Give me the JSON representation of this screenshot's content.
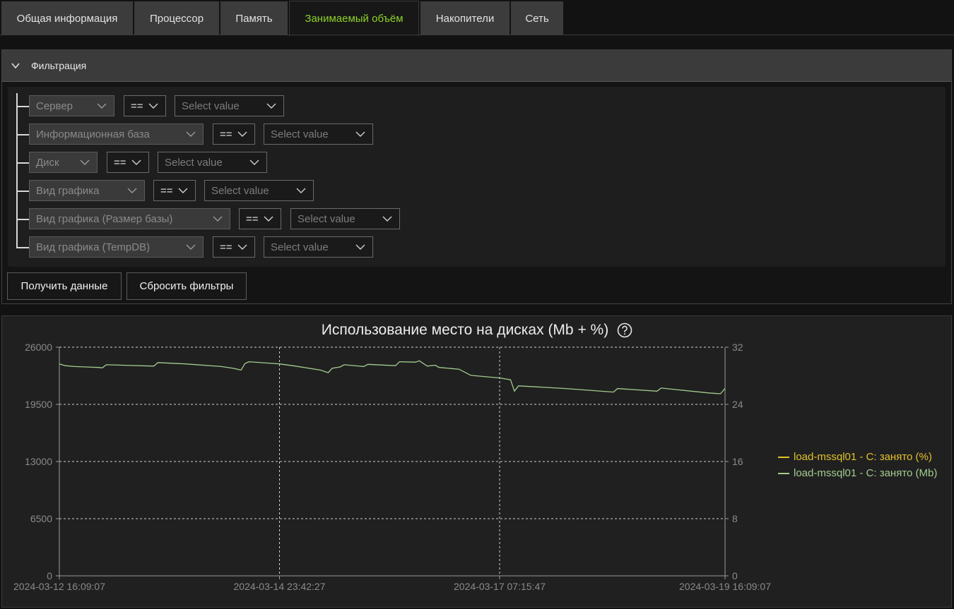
{
  "tabs": [
    {
      "label": "Общая информация"
    },
    {
      "label": "Процессор"
    },
    {
      "label": "Память"
    },
    {
      "label": "Занимаемый объём"
    },
    {
      "label": "Накопители"
    },
    {
      "label": "Сеть"
    }
  ],
  "active_tab": "Занимаемый объём",
  "filter_panel": {
    "title": "Фильтрация",
    "rows": [
      {
        "field": "Сервер",
        "operator": "==",
        "value_placeholder": "Select value"
      },
      {
        "field": "Информационная база",
        "operator": "==",
        "value_placeholder": "Select value"
      },
      {
        "field": "Диск",
        "operator": "==",
        "value_placeholder": "Select value"
      },
      {
        "field": "Вид графика",
        "operator": "==",
        "value_placeholder": "Select value"
      },
      {
        "field": "Вид графика (Размер базы)",
        "operator": "==",
        "value_placeholder": "Select value"
      },
      {
        "field": "Вид графика (TempDB)",
        "operator": "==",
        "value_placeholder": "Select value"
      }
    ],
    "get_data_label": "Получить данные",
    "reset_label": "Сбросить фильтры"
  },
  "colors": {
    "accent": "#8ed22b",
    "series_percent": "#e3c22a",
    "series_mb": "#a3cc8e"
  },
  "chart_data": {
    "type": "line",
    "title": "Использование место на дисках (Mb + %)",
    "x_ticks": [
      "2024-03-12 16:09:07",
      "2024-03-14 23:42:27",
      "2024-03-17 07:15:47",
      "2024-03-19 16:09:07"
    ],
    "x_range": [
      "2024-03-12 16:09:07",
      "2024-03-19 16:09:07"
    ],
    "y_left": {
      "ticks": [
        "0",
        "6500",
        "13000",
        "19500",
        "26000"
      ],
      "range": [
        0,
        26000
      ]
    },
    "y_right": {
      "ticks": [
        "0",
        "8",
        "16",
        "24",
        "32"
      ],
      "range": [
        0,
        32
      ]
    },
    "grid": true,
    "legend_position": "right",
    "series": [
      {
        "name": "load-mssql01 - C: занято (%)",
        "axis": "right",
        "color": "#e3c22a",
        "points": []
      },
      {
        "name": "load-mssql01 - C: занято (Mb)",
        "axis": "left",
        "color": "#a3cc8e",
        "points": [
          [
            "2024-03-12 16:09:07",
            24100
          ],
          [
            "2024-03-12 17:40:00",
            23900
          ],
          [
            "2024-03-12 20:00:00",
            23800
          ],
          [
            "2024-03-13 02:00:00",
            23700
          ],
          [
            "2024-03-13 03:00:00",
            23650
          ],
          [
            "2024-03-13 04:00:00",
            24000
          ],
          [
            "2024-03-13 08:00:00",
            23950
          ],
          [
            "2024-03-13 16:00:00",
            23850
          ],
          [
            "2024-03-13 17:00:00",
            24250
          ],
          [
            "2024-03-14 00:00:00",
            24100
          ],
          [
            "2024-03-14 09:00:00",
            23800
          ],
          [
            "2024-03-14 12:00:00",
            23600
          ],
          [
            "2024-03-14 14:00:00",
            23400
          ],
          [
            "2024-03-14 15:00:00",
            24150
          ],
          [
            "2024-03-14 16:00:00",
            24350
          ],
          [
            "2024-03-14 23:42:27",
            24100
          ],
          [
            "2024-03-15 03:00:00",
            23900
          ],
          [
            "2024-03-15 10:00:00",
            23400
          ],
          [
            "2024-03-15 12:00:00",
            23100
          ],
          [
            "2024-03-15 13:00:00",
            23600
          ],
          [
            "2024-03-15 15:00:00",
            23750
          ],
          [
            "2024-03-15 16:00:00",
            24000
          ],
          [
            "2024-03-15 21:00:00",
            23800
          ],
          [
            "2024-03-15 22:00:00",
            24050
          ],
          [
            "2024-03-16 05:00:00",
            23900
          ],
          [
            "2024-03-16 06:00:00",
            24350
          ],
          [
            "2024-03-16 10:00:00",
            24300
          ],
          [
            "2024-03-16 11:00:00",
            24450
          ],
          [
            "2024-03-16 13:00:00",
            23850
          ],
          [
            "2024-03-16 15:00:00",
            23950
          ],
          [
            "2024-03-16 16:00:00",
            23700
          ],
          [
            "2024-03-16 21:00:00",
            23500
          ],
          [
            "2024-03-17 00:00:00",
            22800
          ],
          [
            "2024-03-17 07:15:47",
            22500
          ],
          [
            "2024-03-17 10:00:00",
            22300
          ],
          [
            "2024-03-17 11:00:00",
            21000
          ],
          [
            "2024-03-17 12:00:00",
            21600
          ],
          [
            "2024-03-18 00:00:00",
            21300
          ],
          [
            "2024-03-18 12:00:00",
            20900
          ],
          [
            "2024-03-18 13:00:00",
            21300
          ],
          [
            "2024-03-18 23:00:00",
            21000
          ],
          [
            "2024-03-19 00:00:00",
            21350
          ],
          [
            "2024-03-19 12:00:00",
            20800
          ],
          [
            "2024-03-19 15:00:00",
            20700
          ],
          [
            "2024-03-19 16:09:07",
            21300
          ]
        ]
      }
    ]
  }
}
